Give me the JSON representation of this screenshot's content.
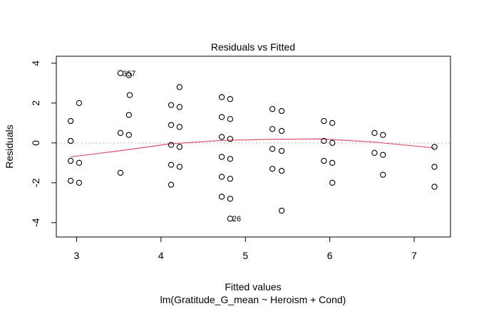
{
  "chart_data": {
    "type": "scatter",
    "title": "Residuals vs Fitted",
    "xlabel": "Fitted values",
    "subtitle": "lm(Gratitude_G_mean ~ Heroism + Cond)",
    "ylabel": "Residuals",
    "xlim": [
      2.76,
      7.43
    ],
    "ylim": [
      -4.72,
      4.35
    ],
    "x_ticks": [
      "3",
      "4",
      "5",
      "6",
      "7"
    ],
    "x_tick_values": [
      3,
      4,
      5,
      6,
      7
    ],
    "y_ticks": [
      "-4",
      "-2",
      "0",
      "2",
      "4"
    ],
    "y_tick_values": [
      -4,
      -2,
      0,
      2,
      4
    ],
    "zero_line": 0,
    "points": [
      {
        "x": 2.93,
        "y": 1.1
      },
      {
        "x": 2.93,
        "y": 0.1
      },
      {
        "x": 2.93,
        "y": -0.9
      },
      {
        "x": 2.93,
        "y": -1.9
      },
      {
        "x": 3.03,
        "y": 2.0
      },
      {
        "x": 3.03,
        "y": -1.0
      },
      {
        "x": 3.03,
        "y": -2.0
      },
      {
        "x": 3.52,
        "y": 3.5
      },
      {
        "x": 3.52,
        "y": 0.5
      },
      {
        "x": 3.52,
        "y": -1.5
      },
      {
        "x": 3.62,
        "y": 3.4
      },
      {
        "x": 3.63,
        "y": 2.4
      },
      {
        "x": 3.62,
        "y": 1.4
      },
      {
        "x": 3.62,
        "y": 0.4
      },
      {
        "x": 4.12,
        "y": 1.9
      },
      {
        "x": 4.12,
        "y": 0.9
      },
      {
        "x": 4.12,
        "y": -0.1
      },
      {
        "x": 4.12,
        "y": -1.1
      },
      {
        "x": 4.12,
        "y": -2.1
      },
      {
        "x": 4.22,
        "y": 2.8
      },
      {
        "x": 4.22,
        "y": 1.8
      },
      {
        "x": 4.22,
        "y": 0.8
      },
      {
        "x": 4.22,
        "y": -0.2
      },
      {
        "x": 4.22,
        "y": -1.2
      },
      {
        "x": 4.72,
        "y": 2.3
      },
      {
        "x": 4.72,
        "y": 1.3
      },
      {
        "x": 4.72,
        "y": 0.3
      },
      {
        "x": 4.72,
        "y": -0.7
      },
      {
        "x": 4.72,
        "y": -1.7
      },
      {
        "x": 4.72,
        "y": -2.7
      },
      {
        "x": 4.82,
        "y": 2.2
      },
      {
        "x": 4.82,
        "y": 1.2
      },
      {
        "x": 4.82,
        "y": 0.2
      },
      {
        "x": 4.82,
        "y": -0.8
      },
      {
        "x": 4.82,
        "y": -1.8
      },
      {
        "x": 4.82,
        "y": -2.8
      },
      {
        "x": 4.82,
        "y": -3.8
      },
      {
        "x": 5.32,
        "y": 1.7
      },
      {
        "x": 5.32,
        "y": 0.7
      },
      {
        "x": 5.32,
        "y": -0.3
      },
      {
        "x": 5.32,
        "y": -1.3
      },
      {
        "x": 5.43,
        "y": 1.6
      },
      {
        "x": 5.43,
        "y": 0.6
      },
      {
        "x": 5.43,
        "y": -0.4
      },
      {
        "x": 5.43,
        "y": -1.4
      },
      {
        "x": 5.43,
        "y": -3.4
      },
      {
        "x": 5.93,
        "y": 1.1
      },
      {
        "x": 5.93,
        "y": 0.1
      },
      {
        "x": 5.93,
        "y": -0.9
      },
      {
        "x": 6.03,
        "y": 1.0
      },
      {
        "x": 6.03,
        "y": 0.0
      },
      {
        "x": 6.03,
        "y": -1.0
      },
      {
        "x": 6.03,
        "y": -2.0
      },
      {
        "x": 6.53,
        "y": 0.5
      },
      {
        "x": 6.53,
        "y": -0.5
      },
      {
        "x": 6.63,
        "y": 0.4
      },
      {
        "x": 6.63,
        "y": -0.6
      },
      {
        "x": 6.63,
        "y": -1.6
      },
      {
        "x": 7.24,
        "y": -0.2
      },
      {
        "x": 7.24,
        "y": -1.2
      },
      {
        "x": 7.24,
        "y": -2.2
      }
    ],
    "smooth_line": {
      "color": "#DF536B",
      "x": [
        2.93,
        3.5,
        4.1,
        4.7,
        5.3,
        5.9,
        6.5,
        7.24
      ],
      "y": [
        -0.7,
        -0.4,
        -0.05,
        0.12,
        0.18,
        0.2,
        0.05,
        -0.25
      ]
    },
    "annotations": [
      {
        "label": "357",
        "x": 3.52,
        "y": 3.5
      },
      {
        "label": "26",
        "x": 4.82,
        "y": -3.8
      }
    ]
  }
}
